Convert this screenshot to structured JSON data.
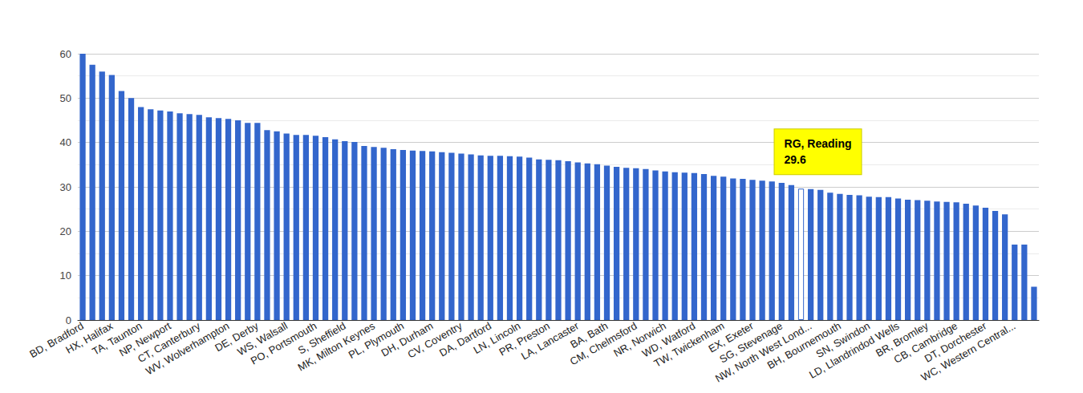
{
  "chart_data": {
    "type": "bar",
    "categories": [
      "BD, Bradford",
      null,
      null,
      "HX, Halifax",
      null,
      null,
      "TA, Taunton",
      null,
      null,
      "NP, Newport",
      null,
      null,
      "CT, Canterbury",
      null,
      null,
      "WV, Wolverhampton",
      null,
      null,
      "DE, Derby",
      null,
      null,
      "WS, Walsall",
      null,
      null,
      "PO, Portsmouth",
      null,
      null,
      "S, Sheffield",
      null,
      null,
      "MK, Milton Keynes",
      null,
      null,
      "PL, Plymouth",
      null,
      null,
      "DH, Durham",
      null,
      null,
      "CV, Coventry",
      null,
      null,
      "DA, Dartford",
      null,
      null,
      "LN, Lincoln",
      null,
      null,
      "PR, Preston",
      null,
      null,
      "LA, Lancaster",
      null,
      null,
      "BA, Bath",
      null,
      null,
      "CM, Chelmsford",
      null,
      null,
      "NR, Norwich",
      null,
      null,
      "WD, Watford",
      null,
      null,
      "TW, Twickenham",
      null,
      null,
      "EX, Exeter",
      null,
      null,
      "SG, Stevenage",
      null,
      null,
      "NW, North West Lond...",
      null,
      null,
      "BH, Bournemouth",
      null,
      null,
      "SN, Swindon",
      null,
      null,
      "LD, Llandrindod Wells",
      null,
      null,
      "BR, Bromley",
      null,
      null,
      "CB, Cambridge",
      null,
      null,
      "DT, Dorchester",
      null,
      null,
      "WC, Western Central...",
      null,
      null
    ],
    "values": [
      60,
      57.5,
      56,
      55.2,
      51.6,
      50,
      48,
      47.5,
      47.2,
      47,
      46.6,
      46.4,
      46.2,
      45.7,
      45.5,
      45.3,
      45,
      44.4,
      44.4,
      42.8,
      42.5,
      42,
      41.7,
      41.7,
      41.5,
      41.2,
      40.7,
      40.3,
      40.1,
      39.2,
      39,
      38.8,
      38.5,
      38.3,
      38.2,
      38.1,
      38,
      37.8,
      37.7,
      37.5,
      37.3,
      37.1,
      37,
      37,
      36.9,
      36.8,
      36.6,
      36.2,
      36.1,
      36,
      35.8,
      35.5,
      35.3,
      35.1,
      34.8,
      34.5,
      34.3,
      34.2,
      34,
      33.7,
      33.5,
      33.3,
      33.2,
      33.1,
      32.9,
      32.5,
      32.3,
      31.9,
      31.8,
      31.6,
      31.4,
      31.2,
      30.9,
      30.4,
      29.6,
      29.5,
      29.3,
      28.7,
      28.4,
      28.2,
      28.1,
      27.8,
      27.7,
      27.7,
      27.4,
      27.1,
      27,
      26.9,
      26.7,
      26.6,
      26.5,
      26.2,
      25.8,
      25.3,
      24.6,
      23.8,
      17,
      17,
      7.5
    ],
    "color": "#3366cc",
    "annotations": [
      {
        "text": "RG, Reading",
        "value": 29.6
      }
    ],
    "ylim": [
      0,
      60
    ],
    "yticks": [
      0,
      10,
      20,
      30,
      40,
      50,
      60
    ],
    "grid": true
  }
}
